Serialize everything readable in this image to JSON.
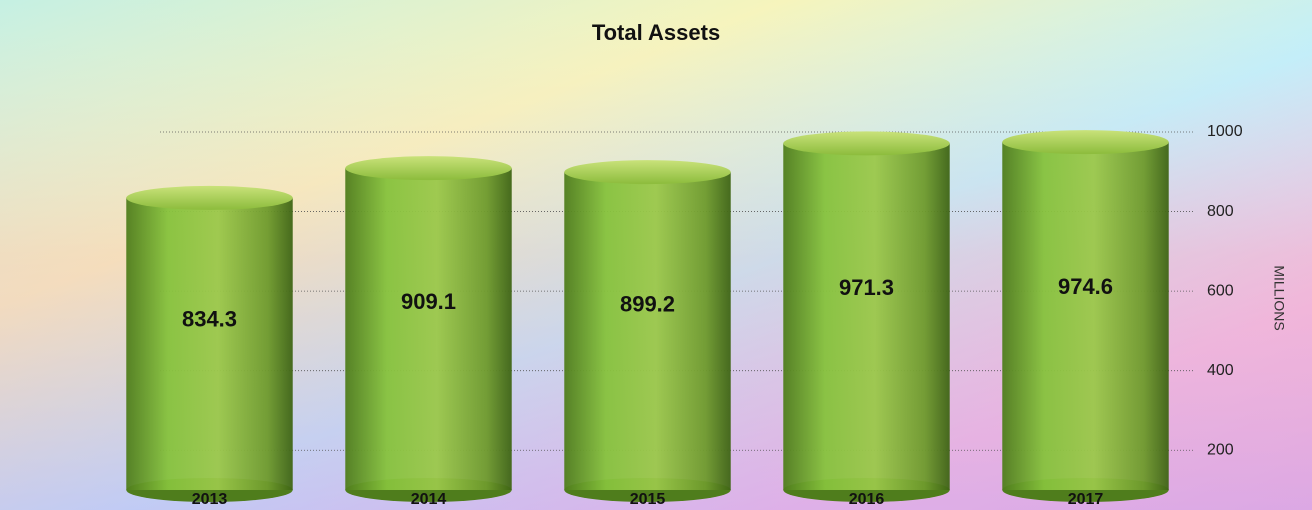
{
  "chart_data": {
    "type": "bar",
    "title": "Total Assets",
    "categories": [
      "2013",
      "2014",
      "2015",
      "2016",
      "2017"
    ],
    "values": [
      834.3,
      909.1,
      899.2,
      971.3,
      974.6
    ],
    "color": "#7fb23a",
    "ylabel": "MILLIONS",
    "ylim": [
      100,
      1000
    ],
    "yticks": [
      200,
      400,
      600,
      800,
      1000
    ],
    "grid": true
  }
}
